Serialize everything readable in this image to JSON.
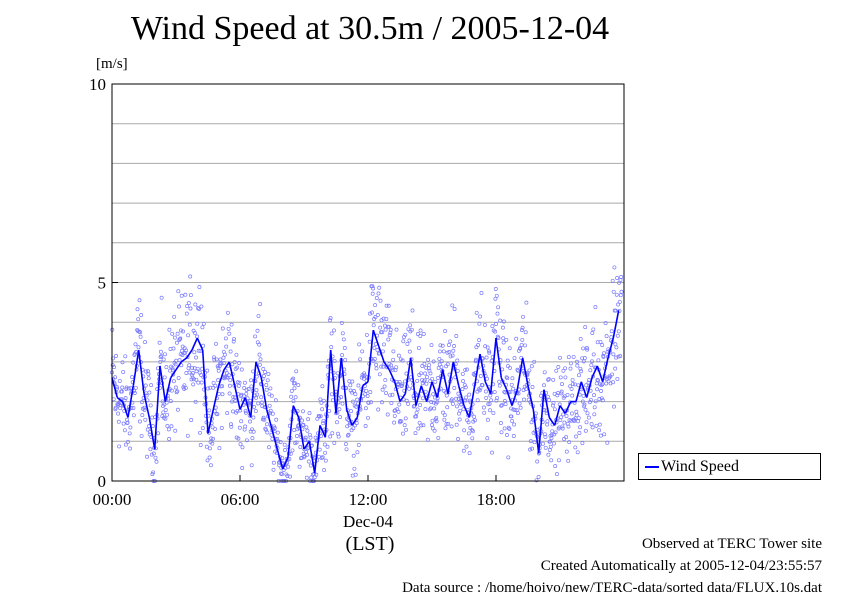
{
  "title": "Wind Speed at 30.5m / 2005-12-04",
  "unit": "[m/s]",
  "legend_label": "Wind Speed",
  "xlabel": "(LST)",
  "date_label": "Dec-04",
  "footer": {
    "site": "Observed at TERC Tower site",
    "created": "Created Automatically at 2005-12-04/23:55:57",
    "source": "Data source : /home/hoivo/new/TERC-data/sorted  data/FLUX.10s.dat"
  },
  "colors": {
    "series": "#0000ff",
    "scatter": "#7a7aff",
    "grid": "#a9a9a9"
  },
  "chart_data": {
    "type": "line",
    "title": "Wind Speed at 30.5m / 2005-12-04",
    "ylabel": "[m/s]",
    "xlabel": "(LST)",
    "ylim": [
      0,
      10
    ],
    "xlim": [
      0,
      24
    ],
    "x_ticks": [
      0,
      6,
      12,
      18
    ],
    "x_tick_labels": [
      "00:00",
      "06:00",
      "12:00",
      "18:00"
    ],
    "y_ticks": [
      0,
      5,
      10
    ],
    "y_tick_labels": [
      "0",
      "5",
      "10"
    ],
    "grid": true,
    "legend_position": "right",
    "series": [
      {
        "name": "Wind Speed",
        "x": [
          0.0,
          0.25,
          0.5,
          0.75,
          1.0,
          1.25,
          1.5,
          1.75,
          2.0,
          2.25,
          2.5,
          2.75,
          3.0,
          3.25,
          3.5,
          3.75,
          4.0,
          4.25,
          4.5,
          4.75,
          5.0,
          5.25,
          5.5,
          5.75,
          6.0,
          6.25,
          6.5,
          6.75,
          7.0,
          7.25,
          7.5,
          7.75,
          8.0,
          8.25,
          8.5,
          8.75,
          9.0,
          9.25,
          9.5,
          9.75,
          10.0,
          10.25,
          10.5,
          10.75,
          11.0,
          11.25,
          11.5,
          11.75,
          12.0,
          12.25,
          12.5,
          12.75,
          13.0,
          13.25,
          13.5,
          13.75,
          14.0,
          14.25,
          14.5,
          14.75,
          15.0,
          15.25,
          15.5,
          15.75,
          16.0,
          16.25,
          16.5,
          16.75,
          17.0,
          17.25,
          17.5,
          17.75,
          18.0,
          18.25,
          18.5,
          18.75,
          19.0,
          19.25,
          19.5,
          19.75,
          20.0,
          20.25,
          20.5,
          20.75,
          21.0,
          21.25,
          21.5,
          21.75,
          22.0,
          22.25,
          22.5,
          22.75,
          23.0,
          23.25,
          23.5,
          23.75
        ],
        "values": [
          2.6,
          2.1,
          2.0,
          1.6,
          2.4,
          3.3,
          2.2,
          1.6,
          0.8,
          2.9,
          2.0,
          2.6,
          2.8,
          3.0,
          3.1,
          3.3,
          3.6,
          3.3,
          1.2,
          1.8,
          2.4,
          2.8,
          3.0,
          2.4,
          1.8,
          2.1,
          1.6,
          3.0,
          2.6,
          1.8,
          1.3,
          0.8,
          0.3,
          0.6,
          1.9,
          1.6,
          0.8,
          1.0,
          0.2,
          1.4,
          1.1,
          3.3,
          1.7,
          3.1,
          1.8,
          1.4,
          1.6,
          2.4,
          2.5,
          3.8,
          3.4,
          3.0,
          2.8,
          2.5,
          2.0,
          2.2,
          3.1,
          1.9,
          2.4,
          2.0,
          2.5,
          2.1,
          2.8,
          2.2,
          3.0,
          2.4,
          1.9,
          1.6,
          2.4,
          3.2,
          2.5,
          2.2,
          3.6,
          2.6,
          2.3,
          1.9,
          2.3,
          3.1,
          2.4,
          1.8,
          0.7,
          2.3,
          1.6,
          1.4,
          1.9,
          1.7,
          2.0,
          2.0,
          2.5,
          2.1,
          2.6,
          2.9,
          2.5,
          3.1,
          3.6,
          4.3
        ]
      }
    ]
  }
}
